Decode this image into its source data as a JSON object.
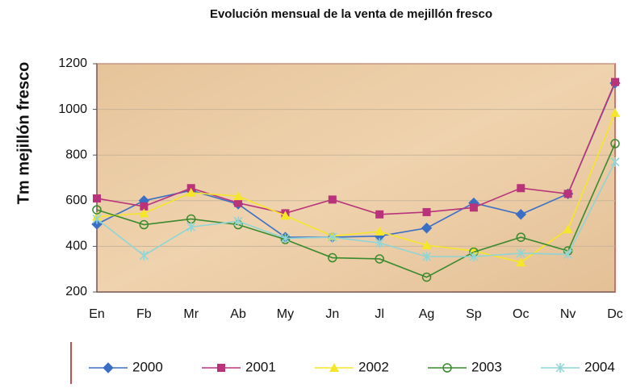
{
  "chart_data": {
    "type": "line",
    "title": "Evolución mensual de la venta de mejillón fresco",
    "y_label": "Tm mejillón fresco",
    "categories": [
      "En",
      "Fb",
      "Mr",
      "Ab",
      "My",
      "Jn",
      "Jl",
      "Ag",
      "Sp",
      "Oc",
      "Nv",
      "Dc"
    ],
    "series": [
      {
        "name": "2000",
        "color": "#3b6fc4",
        "marker": "diamond",
        "values": [
          497,
          600,
          645,
          585,
          440,
          440,
          445,
          480,
          590,
          540,
          630,
          1115
        ]
      },
      {
        "name": "2001",
        "color": "#b8337a",
        "marker": "square",
        "values": [
          610,
          575,
          655,
          590,
          545,
          605,
          540,
          550,
          570,
          655,
          630,
          1120
        ]
      },
      {
        "name": "2002",
        "color": "#f5e62a",
        "marker": "triangle",
        "values": [
          530,
          545,
          635,
          620,
          535,
          445,
          465,
          405,
          380,
          330,
          475,
          985
        ]
      },
      {
        "name": "2003",
        "color": "#3a8a2e",
        "marker": "circle",
        "values": [
          560,
          495,
          520,
          495,
          430,
          350,
          345,
          265,
          375,
          440,
          380,
          850
        ]
      },
      {
        "name": "2004",
        "color": "#8fd4d6",
        "marker": "star",
        "values": [
          520,
          360,
          485,
          510,
          435,
          440,
          415,
          355,
          355,
          370,
          365,
          770
        ]
      }
    ],
    "ylim": [
      200,
      1200
    ],
    "yticks": [
      200,
      400,
      600,
      800,
      1000,
      1200
    ],
    "grid": true,
    "legend": "bottom"
  }
}
